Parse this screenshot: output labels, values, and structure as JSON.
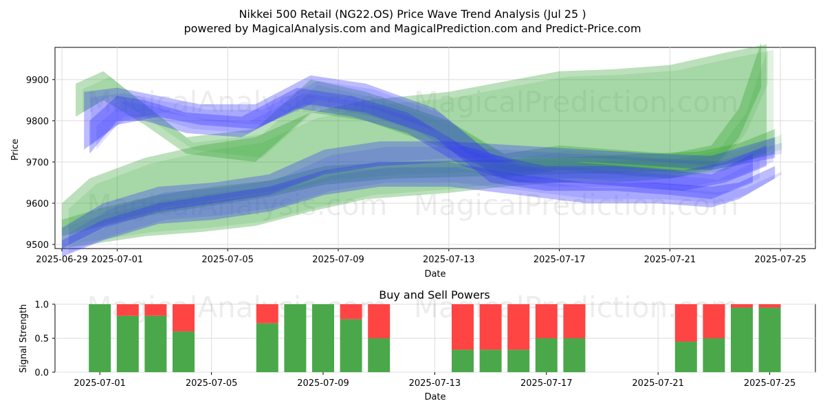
{
  "chart_data": [
    {
      "type": "area",
      "title": "Nikkei 500 Retail (NG22.OS) Price Wave Trend Analysis (Jul 25 )",
      "subtitle": "powered by MagicalAnalysis.com and MagicalPrediction.com and Predict-Price.com",
      "xlabel": "Date",
      "ylabel": "Price",
      "x_range": [
        "2025-06-28",
        "2025-07-26"
      ],
      "ylim": [
        9490,
        9978
      ],
      "x_ticks": [
        "2025-06-29",
        "2025-07-01",
        "2025-07-05",
        "2025-07-09",
        "2025-07-13",
        "2025-07-17",
        "2025-07-21",
        "2025-07-25"
      ],
      "y_ticks": [
        9500,
        9600,
        9700,
        9800,
        9900
      ],
      "grid": true,
      "watermarks": [
        "MagicalAnalysis.com",
        "MagicalPrediction.com",
        "MagicalAnalysis.com",
        "MagicalPrediction.com"
      ],
      "series": [
        {
          "name": "green-wide-band",
          "color": "#2ca02c",
          "x": [
            0,
            1,
            3,
            5,
            7,
            9,
            11,
            14,
            16,
            18,
            20,
            22,
            24,
            25.5
          ],
          "upper": [
            9600,
            9660,
            9710,
            9740,
            9760,
            9820,
            9850,
            9870,
            9895,
            9920,
            9925,
            9935,
            9965,
            9985
          ],
          "lower": [
            9490,
            9500,
            9520,
            9530,
            9545,
            9580,
            9610,
            9625,
            9640,
            9650,
            9650,
            9660,
            9680,
            9720
          ]
        },
        {
          "name": "green-upper-band",
          "color": "#2ca02c",
          "x": [
            0.5,
            1.5,
            3,
            4.5,
            7,
            9,
            11,
            14,
            16,
            18,
            20,
            22,
            23.5,
            24.5,
            25.3
          ],
          "upper": [
            9890,
            9920,
            9840,
            9760,
            9780,
            9900,
            9870,
            9800,
            9720,
            9740,
            9730,
            9720,
            9740,
            9830,
            9990
          ],
          "lower": [
            9810,
            9850,
            9790,
            9720,
            9700,
            9820,
            9800,
            9730,
            9660,
            9680,
            9670,
            9660,
            9680,
            9760,
            9880
          ]
        },
        {
          "name": "green-lower-band",
          "color": "#2ca02c",
          "x": [
            0,
            1.5,
            3.5,
            5.5,
            7.5,
            9.5,
            12,
            15,
            18,
            21,
            23,
            24.5,
            25.8
          ],
          "upper": [
            9560,
            9590,
            9620,
            9640,
            9655,
            9690,
            9700,
            9705,
            9710,
            9720,
            9725,
            9745,
            9780
          ],
          "lower": [
            9520,
            9545,
            9575,
            9595,
            9615,
            9645,
            9660,
            9665,
            9670,
            9675,
            9680,
            9700,
            9720
          ]
        },
        {
          "name": "blue-upper-band",
          "color": "#3030ff",
          "x": [
            0.8,
            2,
            3.5,
            5,
            7,
            9,
            11,
            13.5,
            15.5,
            17.5,
            20,
            22,
            23.5,
            25
          ],
          "upper": [
            9870,
            9880,
            9860,
            9840,
            9840,
            9910,
            9890,
            9830,
            9720,
            9690,
            9690,
            9680,
            9670,
            9720
          ],
          "lower": [
            9730,
            9790,
            9810,
            9790,
            9780,
            9840,
            9820,
            9760,
            9650,
            9630,
            9630,
            9620,
            9610,
            9650
          ]
        },
        {
          "name": "blue-lower-band",
          "color": "#3030ff",
          "x": [
            0,
            1.5,
            3.5,
            5.5,
            7.5,
            9.5,
            11.5,
            14,
            16.5,
            19,
            21.5,
            23.5,
            25.8
          ],
          "upper": [
            9540,
            9600,
            9640,
            9650,
            9670,
            9730,
            9750,
            9750,
            9740,
            9730,
            9720,
            9715,
            9760
          ],
          "lower": [
            9490,
            9540,
            9580,
            9600,
            9620,
            9670,
            9690,
            9700,
            9700,
            9700,
            9690,
            9680,
            9710
          ]
        },
        {
          "name": "blue-bottom-band",
          "color": "#3030ff",
          "x": [
            0,
            1.5,
            3.5,
            5.5,
            7.5,
            9.5,
            11.5,
            14,
            16.5,
            19,
            21.5,
            23.5,
            24.5,
            25.8
          ],
          "upper": [
            9510,
            9560,
            9600,
            9620,
            9640,
            9680,
            9700,
            9700,
            9670,
            9650,
            9650,
            9640,
            9650,
            9690
          ],
          "lower": [
            9470,
            9510,
            9550,
            9560,
            9580,
            9620,
            9640,
            9640,
            9620,
            9600,
            9600,
            9590,
            9610,
            9660
          ]
        },
        {
          "name": "blue-mid-band",
          "color": "#3030ff",
          "x": [
            1,
            2,
            3,
            4.5,
            6.5,
            8.5,
            10.5,
            12.5,
            14.5,
            16.5,
            18.5,
            20.5,
            22.5,
            24,
            25.5
          ],
          "upper": [
            9800,
            9860,
            9850,
            9820,
            9810,
            9880,
            9860,
            9820,
            9740,
            9700,
            9700,
            9690,
            9680,
            9700,
            9740
          ],
          "lower": [
            9720,
            9800,
            9800,
            9770,
            9760,
            9830,
            9810,
            9770,
            9690,
            9650,
            9650,
            9640,
            9630,
            9650,
            9690
          ]
        }
      ]
    },
    {
      "type": "bar",
      "title": "Buy and Sell Powers",
      "xlabel": "Date",
      "ylabel": "Signal Strength",
      "ylim": [
        0,
        1
      ],
      "y_ticks": [
        "0.0",
        "0.5",
        "1.0"
      ],
      "x_ticks": [
        "2025-07-01",
        "2025-07-05",
        "2025-07-09",
        "2025-07-13",
        "2025-07-17",
        "2025-07-21",
        "2025-07-25"
      ],
      "grid": true,
      "watermarks": [
        "MagicalAnalysis.com",
        "MagicalPrediction.com"
      ],
      "series": [
        {
          "name": "Buy",
          "color": "#4aa84a"
        },
        {
          "name": "Sell",
          "color": "#ff4444"
        }
      ],
      "categories": [
        "2025-07-01",
        "2025-07-02",
        "2025-07-03",
        "2025-07-04",
        "2025-07-07",
        "2025-07-08",
        "2025-07-09",
        "2025-07-10",
        "2025-07-11",
        "2025-07-14",
        "2025-07-15",
        "2025-07-16",
        "2025-07-17",
        "2025-07-18",
        "2025-07-22",
        "2025-07-23",
        "2025-07-24",
        "2025-07-25"
      ],
      "buy": [
        1.0,
        0.83,
        0.83,
        0.6,
        0.72,
        1.0,
        1.0,
        0.78,
        0.5,
        0.33,
        0.33,
        0.33,
        0.5,
        0.5,
        0.45,
        0.5,
        0.95,
        0.95
      ],
      "sell": [
        0.0,
        0.17,
        0.17,
        0.4,
        0.28,
        0.0,
        0.0,
        0.22,
        0.5,
        0.67,
        0.67,
        0.67,
        0.5,
        0.5,
        0.55,
        0.5,
        0.05,
        0.05
      ]
    }
  ]
}
